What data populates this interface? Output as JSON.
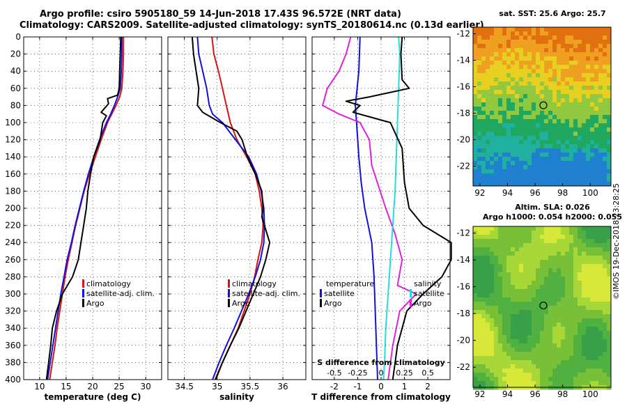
{
  "title_line1": "Argo profile: csiro 5905180_59 14-Jun-2018 17.43S 96.572E (NRT data)",
  "title_line2": "Climatology: CARS2009. Satellite-adjusted climatology: synTS_20180614.nc (0.13d earlier)",
  "credit": "©IMOS 19-Dec-2018 23:28:25",
  "colors": {
    "climatology": "#dd1111",
    "satellite": "#1111dd",
    "argo": "#000000",
    "s_clim": "#e020e0",
    "t_clim": "#22dddd"
  },
  "chart_data": [
    {
      "type": "line",
      "id": "temperature",
      "xlabel": "temperature (deg C)",
      "ylabel": "depth",
      "xlim": [
        7,
        33
      ],
      "ylim": [
        400,
        0
      ],
      "xticks": [
        10,
        15,
        20,
        25,
        30
      ],
      "yticks": [
        0,
        20,
        40,
        60,
        80,
        100,
        120,
        140,
        160,
        180,
        200,
        220,
        240,
        260,
        280,
        300,
        320,
        340,
        360,
        380,
        400
      ],
      "legend": [
        "climatology",
        "satellite-adj. clim.",
        "Argo"
      ],
      "series": [
        {
          "name": "climatology",
          "points": [
            [
              25.8,
              0
            ],
            [
              25.8,
              20
            ],
            [
              25.7,
              40
            ],
            [
              25.5,
              60
            ],
            [
              25.1,
              70
            ],
            [
              24.4,
              80
            ],
            [
              23.6,
              90
            ],
            [
              22.8,
              100
            ],
            [
              21.6,
              120
            ],
            [
              20.5,
              140
            ],
            [
              19.4,
              160
            ],
            [
              18.4,
              180
            ],
            [
              17.6,
              200
            ],
            [
              16.8,
              220
            ],
            [
              16.1,
              240
            ],
            [
              15.4,
              260
            ],
            [
              14.8,
              280
            ],
            [
              14.3,
              300
            ],
            [
              13.8,
              320
            ],
            [
              13.3,
              340
            ],
            [
              12.9,
              360
            ],
            [
              12.4,
              380
            ],
            [
              11.9,
              400
            ]
          ]
        },
        {
          "name": "satellite-adj. clim.",
          "points": [
            [
              25.5,
              0
            ],
            [
              25.5,
              20
            ],
            [
              25.4,
              40
            ],
            [
              25.2,
              60
            ],
            [
              24.7,
              70
            ],
            [
              24.1,
              80
            ],
            [
              23.4,
              90
            ],
            [
              22.6,
              100
            ],
            [
              21.3,
              120
            ],
            [
              20.2,
              140
            ],
            [
              19.2,
              160
            ],
            [
              18.3,
              180
            ],
            [
              17.5,
              200
            ],
            [
              16.7,
              220
            ],
            [
              16.0,
              240
            ],
            [
              15.2,
              260
            ],
            [
              14.6,
              280
            ],
            [
              14.0,
              300
            ],
            [
              13.5,
              320
            ],
            [
              13.0,
              340
            ],
            [
              12.5,
              360
            ],
            [
              12.0,
              380
            ],
            [
              11.5,
              400
            ]
          ]
        },
        {
          "name": "Argo",
          "points": [
            [
              25.3,
              0
            ],
            [
              25.2,
              20
            ],
            [
              25.1,
              40
            ],
            [
              25.0,
              60
            ],
            [
              24.7,
              68
            ],
            [
              22.8,
              72
            ],
            [
              23.0,
              78
            ],
            [
              21.6,
              88
            ],
            [
              22.6,
              92
            ],
            [
              21.9,
              100
            ],
            [
              21.4,
              120
            ],
            [
              20.2,
              140
            ],
            [
              19.6,
              160
            ],
            [
              19.1,
              180
            ],
            [
              18.8,
              200
            ],
            [
              18.3,
              220
            ],
            [
              17.8,
              240
            ],
            [
              17.3,
              260
            ],
            [
              16.2,
              280
            ],
            [
              14.3,
              300
            ],
            [
              13.2,
              320
            ],
            [
              12.4,
              340
            ],
            [
              12.1,
              360
            ],
            [
              11.7,
              380
            ],
            [
              11.3,
              400
            ]
          ]
        }
      ]
    },
    {
      "type": "line",
      "id": "salinity",
      "xlabel": "salinity",
      "xlim": [
        34.25,
        36.35
      ],
      "ylim": [
        400,
        0
      ],
      "xticks": [
        34.5,
        35,
        35.5,
        36
      ],
      "xticklabels": [
        "34.5",
        "35",
        "35.5",
        "36"
      ],
      "legend": [
        "climatology",
        "satellite-adj. clim.",
        "Argo"
      ],
      "series": [
        {
          "name": "climatology",
          "points": [
            [
              34.92,
              0
            ],
            [
              34.95,
              20
            ],
            [
              35.02,
              40
            ],
            [
              35.08,
              60
            ],
            [
              35.14,
              80
            ],
            [
              35.2,
              100
            ],
            [
              35.3,
              120
            ],
            [
              35.45,
              140
            ],
            [
              35.58,
              160
            ],
            [
              35.64,
              180
            ],
            [
              35.68,
              200
            ],
            [
              35.7,
              220
            ],
            [
              35.68,
              240
            ],
            [
              35.62,
              260
            ],
            [
              35.57,
              280
            ],
            [
              35.5,
              300
            ],
            [
              35.41,
              320
            ],
            [
              35.32,
              340
            ],
            [
              35.2,
              360
            ],
            [
              35.08,
              380
            ],
            [
              34.98,
              400
            ]
          ]
        },
        {
          "name": "satellite-adj. clim.",
          "points": [
            [
              34.7,
              0
            ],
            [
              34.72,
              20
            ],
            [
              34.78,
              40
            ],
            [
              34.84,
              60
            ],
            [
              34.88,
              80
            ],
            [
              34.93,
              90
            ],
            [
              35.08,
              100
            ],
            [
              35.28,
              120
            ],
            [
              35.48,
              140
            ],
            [
              35.6,
              160
            ],
            [
              35.67,
              180
            ],
            [
              35.71,
              200
            ],
            [
              35.72,
              220
            ],
            [
              35.71,
              240
            ],
            [
              35.66,
              260
            ],
            [
              35.58,
              280
            ],
            [
              35.48,
              300
            ],
            [
              35.37,
              320
            ],
            [
              35.26,
              340
            ],
            [
              35.14,
              360
            ],
            [
              35.03,
              380
            ],
            [
              34.93,
              400
            ]
          ]
        },
        {
          "name": "Argo",
          "points": [
            [
              34.62,
              0
            ],
            [
              34.64,
              20
            ],
            [
              34.68,
              40
            ],
            [
              34.72,
              60
            ],
            [
              34.7,
              80
            ],
            [
              34.78,
              88
            ],
            [
              35.05,
              100
            ],
            [
              35.3,
              110
            ],
            [
              35.38,
              120
            ],
            [
              35.46,
              140
            ],
            [
              35.58,
              160
            ],
            [
              35.68,
              180
            ],
            [
              35.7,
              200
            ],
            [
              35.68,
              210
            ],
            [
              35.74,
              225
            ],
            [
              35.8,
              240
            ],
            [
              35.74,
              260
            ],
            [
              35.66,
              280
            ],
            [
              35.55,
              300
            ],
            [
              35.44,
              320
            ],
            [
              35.33,
              340
            ],
            [
              35.2,
              360
            ],
            [
              35.08,
              380
            ],
            [
              34.97,
              400
            ]
          ]
        }
      ]
    },
    {
      "type": "line",
      "id": "difference",
      "xlabel": "T difference from climatology",
      "xlabel_top": "S difference from climatology",
      "xlim": [
        -2.95,
        2.95
      ],
      "ylim": [
        400,
        0
      ],
      "xticks": [
        -2,
        -1,
        0,
        1,
        2
      ],
      "xticks_s": [
        -0.5,
        -0.25,
        0,
        0.25,
        0.5
      ],
      "xticklabels_s": [
        "-0.5",
        "-0.25",
        "0",
        "0.25",
        "0.5"
      ],
      "legend_left_title": "temperature",
      "legend_right_title": "salinity",
      "legend": [
        "satellite",
        "Argo"
      ],
      "series": [
        {
          "name": "S satellite",
          "points": [
            [
              -0.9,
              0
            ],
            [
              -0.95,
              40
            ],
            [
              -1.1,
              80
            ],
            [
              -1.05,
              100
            ],
            [
              -0.95,
              140
            ],
            [
              -0.85,
              170
            ],
            [
              -0.7,
              200
            ],
            [
              -0.4,
              240
            ],
            [
              -0.3,
              280
            ],
            [
              -0.25,
              320
            ],
            [
              -0.2,
              360
            ],
            [
              -0.15,
              400
            ]
          ]
        },
        {
          "name": "S climatology",
          "points": [
            [
              -1.3,
              0
            ],
            [
              -1.5,
              20
            ],
            [
              -1.8,
              40
            ],
            [
              -2.3,
              60
            ],
            [
              -2.5,
              80
            ],
            [
              -1.8,
              90
            ],
            [
              -0.9,
              100
            ],
            [
              -0.5,
              120
            ],
            [
              -0.4,
              150
            ],
            [
              0.2,
              200
            ],
            [
              0.6,
              230
            ],
            [
              0.9,
              260
            ],
            [
              0.7,
              290
            ],
            [
              1.5,
              300
            ],
            [
              0.8,
              320
            ],
            [
              0.5,
              360
            ],
            [
              0.3,
              400
            ]
          ]
        },
        {
          "name": "T satellite",
          "points": [
            [
              0.75,
              0
            ],
            [
              0.8,
              20
            ],
            [
              0.75,
              60
            ],
            [
              0.7,
              100
            ],
            [
              0.65,
              140
            ],
            [
              0.6,
              180
            ],
            [
              0.5,
              220
            ],
            [
              0.4,
              260
            ],
            [
              0.3,
              300
            ],
            [
              0.2,
              340
            ],
            [
              0.15,
              380
            ],
            [
              0.1,
              400
            ]
          ]
        },
        {
          "name": "T Argo",
          "points": [
            [
              0.9,
              0
            ],
            [
              0.85,
              20
            ],
            [
              0.9,
              50
            ],
            [
              1.2,
              60
            ],
            [
              -0.5,
              70
            ],
            [
              -1.5,
              75
            ],
            [
              -0.9,
              80
            ],
            [
              -1.2,
              88
            ],
            [
              0.4,
              100
            ],
            [
              0.9,
              130
            ],
            [
              1.0,
              170
            ],
            [
              1.2,
              200
            ],
            [
              1.8,
              220
            ],
            [
              3.0,
              240
            ],
            [
              3.0,
              260
            ],
            [
              2.6,
              280
            ],
            [
              1.8,
              300
            ],
            [
              1.1,
              320
            ],
            [
              0.7,
              360
            ],
            [
              0.5,
              400
            ]
          ]
        }
      ]
    },
    {
      "type": "heatmap",
      "id": "sst_map",
      "title": "sat. SST: 25.6 Argo: 25.7",
      "xlim": [
        91.5,
        101.5
      ],
      "ylim": [
        -23.5,
        -11.5
      ],
      "xticks": [
        92,
        94,
        96,
        98,
        100
      ],
      "yticks": [
        -12,
        -14,
        -16,
        -18,
        -20,
        -22
      ],
      "marker": [
        96.6,
        -17.4
      ],
      "color_bands": [
        "#e07010",
        "#f0a020",
        "#e8d020",
        "#90c840",
        "#20a860",
        "#20b0a0",
        "#2080d0"
      ]
    },
    {
      "type": "heatmap",
      "id": "sla_map",
      "title_line1": "Altim. SLA: 0.026",
      "title_line2": "Argo h1000: 0.054 h2000: 0.055",
      "xlim": [
        91.5,
        101.5
      ],
      "ylim": [
        -23.5,
        -11.5
      ],
      "xticks": [
        92,
        94,
        96,
        98,
        100
      ],
      "yticks": [
        -12,
        -14,
        -16,
        -18,
        -20,
        -22
      ],
      "marker": [
        96.6,
        -17.4
      ]
    }
  ]
}
